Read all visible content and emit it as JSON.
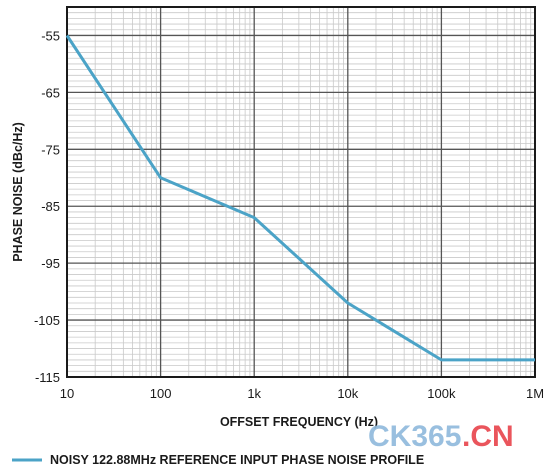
{
  "chart_data": {
    "type": "line",
    "title": "",
    "xlabel": "OFFSET FREQUENCY (Hz)",
    "ylabel": "PHASE NOISE (dBc/Hz)",
    "x_scale": "log",
    "xlim": [
      10,
      1000000
    ],
    "ylim": [
      -115,
      -50
    ],
    "x_ticks": [
      10,
      100,
      1000,
      10000,
      100000,
      1000000
    ],
    "x_tick_labels": [
      "10",
      "100",
      "1k",
      "10k",
      "100k",
      "1M"
    ],
    "y_ticks": [
      -55,
      -65,
      -75,
      -85,
      -95,
      -105,
      -115
    ],
    "y_tick_labels": [
      "-55",
      "-65",
      "-75",
      "-85",
      "-95",
      "-105",
      "-115"
    ],
    "grid": true,
    "legend_position": "bottom",
    "series": [
      {
        "name": "NOISY 122.88MHz REFERENCE INPUT PHASE NOISE PROFILE",
        "color": "#4ba3c7",
        "x": [
          10,
          100,
          1000,
          10000,
          100000,
          1000000
        ],
        "y": [
          -55,
          -80,
          -87,
          -102,
          -112,
          -112
        ]
      }
    ]
  },
  "watermark": {
    "brand_ck": "CK365",
    "brand_cn": ".CN"
  }
}
